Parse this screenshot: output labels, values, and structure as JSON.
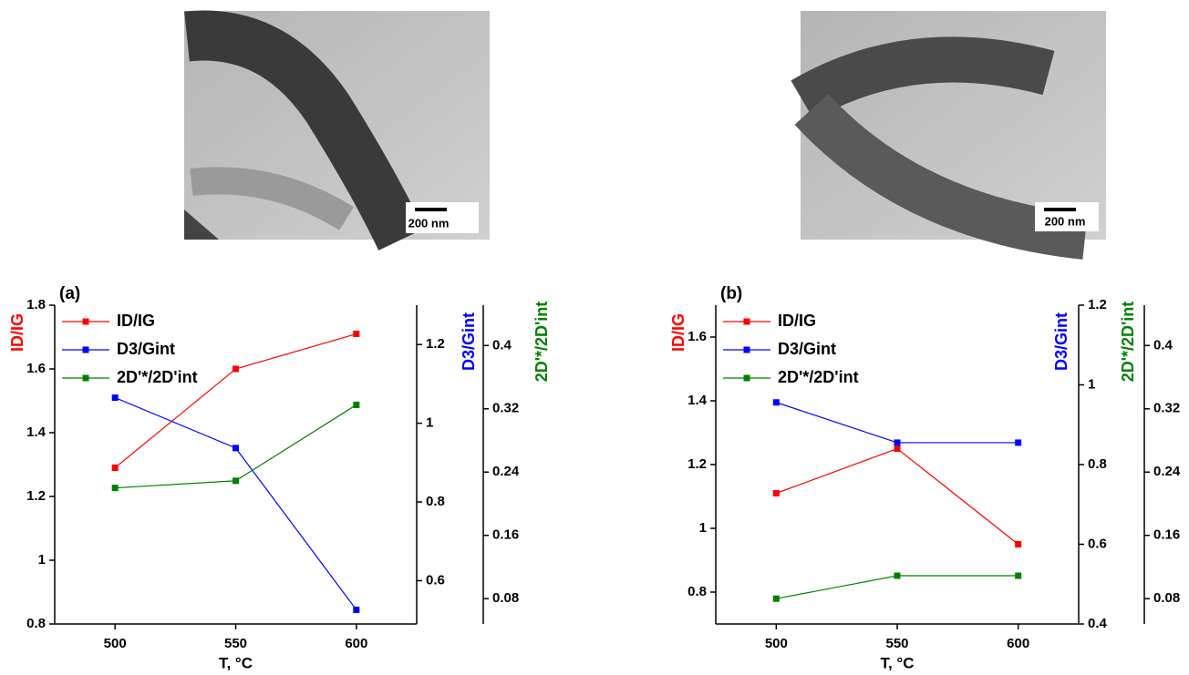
{
  "images": [
    {
      "scale_bar": "200 nm"
    },
    {
      "scale_bar": "200 nm"
    }
  ],
  "chart_data": [
    {
      "type": "line",
      "title": "(a)",
      "xlabel": "T, °C",
      "ylabel": "ID/IG",
      "y2label": "D3/Gint",
      "y3label": "2D'*/2D'int",
      "x": [
        500,
        550,
        600
      ],
      "xlim": [
        475,
        625
      ],
      "xticks": [
        500,
        550,
        600
      ],
      "ylim": [
        0.8,
        1.8
      ],
      "yticks": [
        0.8,
        1.0,
        1.2,
        1.4,
        1.6,
        1.8
      ],
      "y2lim": [
        0.49,
        1.3
      ],
      "y2ticks": [
        0.6,
        0.8,
        1.0,
        1.2
      ],
      "y3lim": [
        0.048,
        0.451
      ],
      "y3ticks": [
        0.08,
        0.16,
        0.24,
        0.32,
        0.4
      ],
      "series": [
        {
          "name": "ID/IG",
          "color": "#ff0000",
          "axis": "y",
          "values": [
            1.29,
            1.6,
            1.71
          ]
        },
        {
          "name": "D3/Gint",
          "color": "#0000ff",
          "axis": "y2",
          "values": [
            1.065,
            0.937,
            0.526
          ]
        },
        {
          "name": "2D'*/2D'int",
          "color": "#008000",
          "axis": "y3",
          "values": [
            0.22,
            0.229,
            0.325
          ]
        }
      ]
    },
    {
      "type": "line",
      "title": "(b)",
      "xlabel": "T, °C",
      "ylabel": "ID/IG",
      "y2label": "D3/Gint",
      "y3label": "2D'*/2D'int",
      "x": [
        500,
        550,
        600
      ],
      "xlim": [
        475,
        625
      ],
      "xticks": [
        500,
        550,
        600
      ],
      "ylim": [
        0.7,
        1.7
      ],
      "yticks": [
        0.8,
        1.0,
        1.2,
        1.4,
        1.6
      ],
      "y2lim": [
        0.4,
        1.2
      ],
      "y2ticks": [
        0.4,
        0.6,
        0.8,
        1.0,
        1.2
      ],
      "y3lim": [
        0.048,
        0.451
      ],
      "y3ticks": [
        0.08,
        0.16,
        0.24,
        0.32,
        0.4
      ],
      "series": [
        {
          "name": "ID/IG",
          "color": "#ff0000",
          "axis": "y",
          "values": [
            1.11,
            1.25,
            0.95
          ]
        },
        {
          "name": "D3/Gint",
          "color": "#0000ff",
          "axis": "y2",
          "values": [
            0.956,
            0.855,
            0.855
          ]
        },
        {
          "name": "2D'*/2D'int",
          "color": "#008000",
          "axis": "y3",
          "values": [
            0.08,
            0.109,
            0.109
          ]
        }
      ]
    }
  ]
}
